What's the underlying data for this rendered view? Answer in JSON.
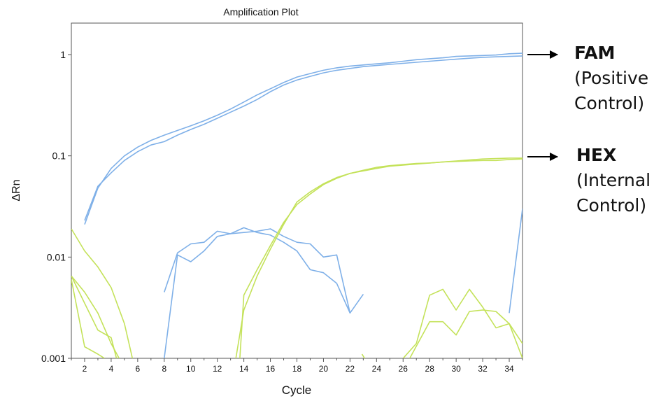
{
  "chart_data": {
    "type": "line",
    "title": "Amplification Plot",
    "xlabel": "Cycle",
    "ylabel": "ΔRn",
    "y_scale": "log",
    "xlim": [
      1,
      35
    ],
    "ylim": [
      0.001,
      2
    ],
    "x_ticks": [
      2,
      4,
      6,
      8,
      10,
      12,
      14,
      16,
      18,
      20,
      22,
      24,
      26,
      28,
      30,
      32,
      34
    ],
    "y_ticks": [
      {
        "value": 0.001,
        "label": "0.001"
      },
      {
        "value": 0.01,
        "label": "0.01"
      },
      {
        "value": 0.1,
        "label": "0.1"
      },
      {
        "value": 1,
        "label": "1"
      }
    ],
    "grid": false,
    "colors": {
      "fam": "#7fb0e8",
      "hex": "#c4e25a"
    },
    "series": [
      {
        "dye": "fam",
        "points": [
          [
            2,
            0.021
          ],
          [
            3,
            0.048
          ],
          [
            4,
            0.075
          ],
          [
            5,
            0.1
          ],
          [
            6,
            0.122
          ],
          [
            7,
            0.142
          ],
          [
            8,
            0.16
          ],
          [
            9,
            0.178
          ],
          [
            10,
            0.198
          ],
          [
            11,
            0.222
          ],
          [
            12,
            0.252
          ],
          [
            13,
            0.29
          ],
          [
            14,
            0.34
          ],
          [
            15,
            0.4
          ],
          [
            16,
            0.46
          ],
          [
            17,
            0.53
          ],
          [
            18,
            0.6
          ],
          [
            19,
            0.65
          ],
          [
            20,
            0.7
          ],
          [
            21,
            0.74
          ],
          [
            22,
            0.77
          ],
          [
            23,
            0.79
          ],
          [
            24,
            0.81
          ],
          [
            25,
            0.83
          ],
          [
            26,
            0.86
          ],
          [
            27,
            0.89
          ],
          [
            28,
            0.91
          ],
          [
            29,
            0.93
          ],
          [
            30,
            0.96
          ],
          [
            31,
            0.97
          ],
          [
            32,
            0.98
          ],
          [
            33,
            0.99
          ],
          [
            34,
            1.02
          ],
          [
            35,
            1.03
          ]
        ]
      },
      {
        "dye": "fam",
        "points": [
          [
            2,
            0.023
          ],
          [
            3,
            0.05
          ],
          [
            4,
            0.068
          ],
          [
            5,
            0.09
          ],
          [
            6,
            0.11
          ],
          [
            7,
            0.128
          ],
          [
            8,
            0.138
          ],
          [
            9,
            0.16
          ],
          [
            10,
            0.182
          ],
          [
            11,
            0.205
          ],
          [
            12,
            0.235
          ],
          [
            13,
            0.27
          ],
          [
            14,
            0.31
          ],
          [
            15,
            0.36
          ],
          [
            16,
            0.43
          ],
          [
            17,
            0.5
          ],
          [
            18,
            0.56
          ],
          [
            19,
            0.61
          ],
          [
            20,
            0.66
          ],
          [
            21,
            0.7
          ],
          [
            22,
            0.73
          ],
          [
            23,
            0.76
          ],
          [
            24,
            0.78
          ],
          [
            25,
            0.8
          ],
          [
            26,
            0.82
          ],
          [
            27,
            0.84
          ],
          [
            28,
            0.86
          ],
          [
            29,
            0.88
          ],
          [
            30,
            0.9
          ],
          [
            31,
            0.92
          ],
          [
            32,
            0.94
          ],
          [
            33,
            0.95
          ],
          [
            34,
            0.96
          ],
          [
            35,
            0.97
          ]
        ]
      },
      {
        "dye": "fam",
        "points": [
          [
            8,
            0.0045
          ],
          [
            9,
            0.011
          ],
          [
            10,
            0.0135
          ],
          [
            11,
            0.014
          ],
          [
            12,
            0.018
          ],
          [
            13,
            0.017
          ],
          [
            14,
            0.0175
          ],
          [
            15,
            0.018
          ],
          [
            16,
            0.019
          ],
          [
            17,
            0.016
          ],
          [
            18,
            0.014
          ],
          [
            19,
            0.0135
          ],
          [
            20,
            0.01
          ],
          [
            21,
            0.0105
          ],
          [
            22,
            0.0028
          ]
        ]
      },
      {
        "dye": "fam",
        "points": [
          [
            8,
            0.001
          ],
          [
            9,
            0.0105
          ],
          [
            10,
            0.009
          ],
          [
            11,
            0.0115
          ],
          [
            12,
            0.016
          ],
          [
            13,
            0.017
          ],
          [
            14,
            0.0195
          ],
          [
            15,
            0.0175
          ],
          [
            16,
            0.0165
          ],
          [
            17,
            0.014
          ],
          [
            18,
            0.0115
          ],
          [
            19,
            0.0075
          ],
          [
            20,
            0.007
          ],
          [
            21,
            0.0055
          ],
          [
            22,
            0.0028
          ],
          [
            23,
            0.0043
          ]
        ]
      },
      {
        "dye": "fam",
        "points": [
          [
            34,
            0.0028
          ],
          [
            35,
            0.03
          ]
        ]
      },
      {
        "dye": "hex",
        "points": [
          [
            1,
            0.019
          ],
          [
            2,
            0.0115
          ],
          [
            3,
            0.008
          ],
          [
            4,
            0.005
          ],
          [
            5,
            0.0022
          ],
          [
            5.6,
            0.001
          ]
        ]
      },
      {
        "dye": "hex",
        "points": [
          [
            1,
            0.0065
          ],
          [
            2,
            0.0045
          ],
          [
            3,
            0.0028
          ],
          [
            4,
            0.0014
          ],
          [
            4.6,
            0.001
          ]
        ]
      },
      {
        "dye": "hex",
        "points": [
          [
            1,
            0.0065
          ],
          [
            2,
            0.0035
          ],
          [
            3,
            0.0019
          ],
          [
            4,
            0.0016
          ],
          [
            4.4,
            0.001
          ]
        ]
      },
      {
        "dye": "hex",
        "points": [
          [
            1,
            0.006
          ],
          [
            2,
            0.0013
          ],
          [
            3,
            0.0011
          ],
          [
            3.5,
            0.001
          ]
        ]
      },
      {
        "dye": "hex",
        "points": [
          [
            13.7,
            0.001
          ],
          [
            14,
            0.0042
          ],
          [
            15,
            0.0075
          ],
          [
            16,
            0.013
          ],
          [
            17,
            0.022
          ],
          [
            18,
            0.033
          ],
          [
            19,
            0.042
          ],
          [
            20,
            0.052
          ],
          [
            21,
            0.06
          ],
          [
            22,
            0.067
          ],
          [
            23,
            0.072
          ],
          [
            24,
            0.077
          ],
          [
            25,
            0.08
          ],
          [
            26,
            0.082
          ],
          [
            27,
            0.084
          ],
          [
            28,
            0.085
          ],
          [
            29,
            0.087
          ],
          [
            30,
            0.089
          ],
          [
            31,
            0.091
          ],
          [
            32,
            0.093
          ],
          [
            33,
            0.094
          ],
          [
            34,
            0.095
          ],
          [
            35,
            0.095
          ]
        ]
      },
      {
        "dye": "hex",
        "points": [
          [
            13.4,
            0.001
          ],
          [
            14,
            0.003
          ],
          [
            15,
            0.0065
          ],
          [
            16,
            0.012
          ],
          [
            17,
            0.021
          ],
          [
            18,
            0.035
          ],
          [
            19,
            0.044
          ],
          [
            20,
            0.053
          ],
          [
            21,
            0.061
          ],
          [
            22,
            0.067
          ],
          [
            23,
            0.071
          ],
          [
            24,
            0.075
          ],
          [
            25,
            0.079
          ],
          [
            26,
            0.081
          ],
          [
            27,
            0.083
          ],
          [
            28,
            0.085
          ],
          [
            29,
            0.087
          ],
          [
            30,
            0.088
          ],
          [
            31,
            0.089
          ],
          [
            32,
            0.09
          ],
          [
            33,
            0.09
          ],
          [
            34,
            0.092
          ],
          [
            35,
            0.093
          ]
        ]
      },
      {
        "dye": "hex",
        "points": [
          [
            26,
            0.001
          ],
          [
            27,
            0.0014
          ],
          [
            28,
            0.0042
          ],
          [
            29,
            0.0048
          ],
          [
            30,
            0.003
          ],
          [
            31,
            0.0048
          ],
          [
            32,
            0.0032
          ],
          [
            33,
            0.002
          ],
          [
            34,
            0.0022
          ],
          [
            35,
            0.001
          ]
        ]
      },
      {
        "dye": "hex",
        "points": [
          [
            26.5,
            0.001
          ],
          [
            28,
            0.0023
          ],
          [
            29,
            0.0023
          ],
          [
            30,
            0.0017
          ],
          [
            31,
            0.0029
          ],
          [
            32,
            0.003
          ],
          [
            33,
            0.0029
          ],
          [
            34,
            0.0022
          ],
          [
            35,
            0.0014
          ]
        ]
      },
      {
        "dye": "hex",
        "points": [
          [
            22.9,
            0.0011
          ],
          [
            23.1,
            0.001
          ]
        ]
      }
    ],
    "annotations": [
      {
        "target": "fam",
        "name": "FAM",
        "lines": [
          "(Positive",
          "Control)"
        ]
      },
      {
        "target": "hex",
        "name": "HEX",
        "lines": [
          "(Internal",
          "Control)"
        ]
      }
    ]
  }
}
